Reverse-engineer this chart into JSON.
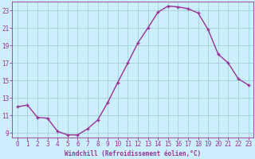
{
  "x": [
    0,
    1,
    2,
    3,
    4,
    5,
    6,
    7,
    8,
    9,
    10,
    11,
    12,
    13,
    14,
    15,
    16,
    17,
    18,
    19,
    20,
    21,
    22,
    23
  ],
  "y": [
    12.0,
    12.2,
    10.8,
    10.7,
    9.2,
    8.8,
    8.8,
    9.5,
    10.5,
    12.5,
    14.8,
    17.0,
    19.3,
    21.0,
    22.8,
    23.5,
    23.4,
    23.2,
    22.7,
    20.8,
    18.0,
    17.0,
    15.2,
    14.5
  ],
  "line_color": "#993399",
  "marker": "+",
  "bg_color": "#cceeff",
  "grid_color": "#99cccc",
  "xlabel": "Windchill (Refroidissement éolien,°C)",
  "xlim_min": -0.5,
  "xlim_max": 23.5,
  "ylim_min": 8.5,
  "ylim_max": 24.0,
  "yticks": [
    9,
    11,
    13,
    15,
    17,
    19,
    21,
    23
  ],
  "xtick_labels": [
    "0",
    "1",
    "2",
    "3",
    "4",
    "5",
    "6",
    "7",
    "8",
    "9",
    "10",
    "11",
    "12",
    "13",
    "14",
    "15",
    "16",
    "17",
    "18",
    "19",
    "20",
    "21",
    "22",
    "23"
  ],
  "axis_fontsize": 5.5,
  "tick_fontsize": 5.5,
  "linewidth": 1.0,
  "markersize": 3.0,
  "markeredgewidth": 1.0
}
